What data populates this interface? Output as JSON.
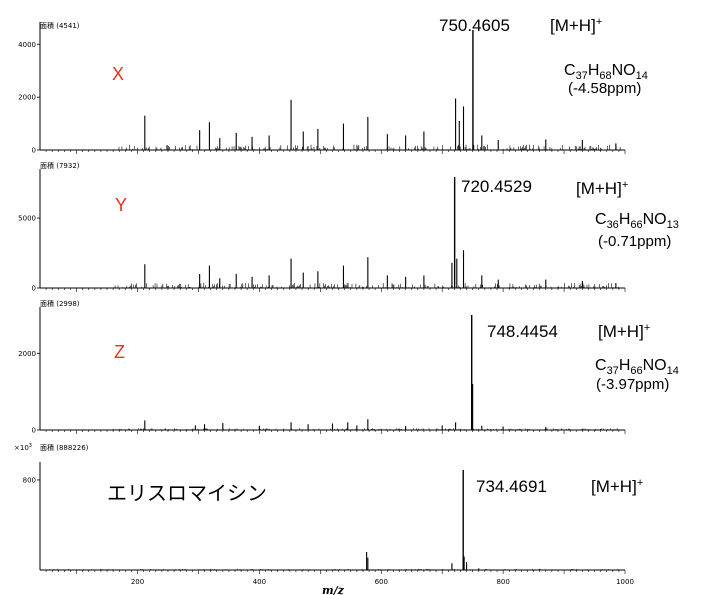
{
  "chart_data": [
    {
      "type": "bar",
      "header": "面積 (4541)",
      "label": "X",
      "label_color": "#e8321e",
      "peak_label": "750.4605",
      "ion": "[M+H]",
      "ion_sup": "+",
      "formula_parts": [
        "C",
        "37",
        "H",
        "68",
        "NO",
        "14"
      ],
      "ppm": "(-4.58ppm)",
      "yticks": [
        "4000",
        "2000",
        "0"
      ],
      "ylim": [
        0,
        4541
      ],
      "main_peak": {
        "x": 750.46,
        "y": 4541
      },
      "peaks": [
        {
          "x": 212,
          "y": 1300
        },
        {
          "x": 302,
          "y": 750
        },
        {
          "x": 318,
          "y": 1050
        },
        {
          "x": 335,
          "y": 450
        },
        {
          "x": 362,
          "y": 650
        },
        {
          "x": 388,
          "y": 500
        },
        {
          "x": 416,
          "y": 550
        },
        {
          "x": 452,
          "y": 1900
        },
        {
          "x": 472,
          "y": 700
        },
        {
          "x": 496,
          "y": 800
        },
        {
          "x": 538,
          "y": 1000
        },
        {
          "x": 578,
          "y": 1250
        },
        {
          "x": 610,
          "y": 600
        },
        {
          "x": 640,
          "y": 550
        },
        {
          "x": 670,
          "y": 700
        },
        {
          "x": 722,
          "y": 1950
        },
        {
          "x": 728,
          "y": 1100
        },
        {
          "x": 735,
          "y": 1650
        },
        {
          "x": 765,
          "y": 550
        },
        {
          "x": 792,
          "y": 380
        },
        {
          "x": 870,
          "y": 400
        },
        {
          "x": 930,
          "y": 380
        },
        {
          "x": 985,
          "y": 250
        }
      ]
    },
    {
      "type": "bar",
      "header": "面積 (7932)",
      "label": "Y",
      "label_color": "#e8321e",
      "peak_label": "720.4529",
      "ion": "[M+H]",
      "ion_sup": "+",
      "formula_parts": [
        "C",
        "36",
        "H",
        "66",
        "NO",
        "13"
      ],
      "ppm": "(-0.71ppm)",
      "yticks": [
        "5000",
        "0"
      ],
      "ylim": [
        0,
        7932
      ],
      "main_peak": {
        "x": 720.45,
        "y": 7932
      },
      "peaks": [
        {
          "x": 212,
          "y": 1700
        },
        {
          "x": 302,
          "y": 1000
        },
        {
          "x": 318,
          "y": 1600
        },
        {
          "x": 335,
          "y": 700
        },
        {
          "x": 362,
          "y": 1000
        },
        {
          "x": 388,
          "y": 800
        },
        {
          "x": 416,
          "y": 900
        },
        {
          "x": 452,
          "y": 2100
        },
        {
          "x": 472,
          "y": 1100
        },
        {
          "x": 496,
          "y": 1200
        },
        {
          "x": 538,
          "y": 1600
        },
        {
          "x": 578,
          "y": 2200
        },
        {
          "x": 610,
          "y": 900
        },
        {
          "x": 640,
          "y": 800
        },
        {
          "x": 670,
          "y": 900
        },
        {
          "x": 716,
          "y": 1800
        },
        {
          "x": 724,
          "y": 2100
        },
        {
          "x": 735,
          "y": 2700
        },
        {
          "x": 765,
          "y": 900
        },
        {
          "x": 792,
          "y": 600
        },
        {
          "x": 870,
          "y": 600
        },
        {
          "x": 930,
          "y": 500
        },
        {
          "x": 985,
          "y": 350
        }
      ]
    },
    {
      "type": "bar",
      "header": "面積 (2998)",
      "label": "Z",
      "label_color": "#e8321e",
      "peak_label": "748.4454",
      "ion": "[M+H]",
      "ion_sup": "+",
      "formula_parts": [
        "C",
        "37",
        "H",
        "66",
        "NO",
        "14"
      ],
      "ppm": "(-3.97ppm)",
      "yticks": [
        "2000",
        "0"
      ],
      "ylim": [
        0,
        2998
      ],
      "main_peak": {
        "x": 748.45,
        "y": 2998
      },
      "peaks": [
        {
          "x": 212,
          "y": 250
        },
        {
          "x": 295,
          "y": 120
        },
        {
          "x": 310,
          "y": 150
        },
        {
          "x": 340,
          "y": 180
        },
        {
          "x": 400,
          "y": 110
        },
        {
          "x": 452,
          "y": 200
        },
        {
          "x": 480,
          "y": 150
        },
        {
          "x": 520,
          "y": 170
        },
        {
          "x": 545,
          "y": 200
        },
        {
          "x": 560,
          "y": 120
        },
        {
          "x": 578,
          "y": 280
        },
        {
          "x": 640,
          "y": 100
        },
        {
          "x": 700,
          "y": 120
        },
        {
          "x": 722,
          "y": 200
        },
        {
          "x": 750,
          "y": 1200
        },
        {
          "x": 765,
          "y": 110
        },
        {
          "x": 800,
          "y": 90
        },
        {
          "x": 870,
          "y": 80
        }
      ]
    },
    {
      "type": "bar",
      "scale_prefix": "×10",
      "scale_exp": "3",
      "header": "面積 (888226)",
      "label": "エリスロマイシン",
      "label_color": "#000000",
      "peak_label": "734.4691",
      "ion": "[M+H]",
      "ion_sup": "+",
      "formula_parts": [],
      "ppm": "",
      "yticks": [
        "800"
      ],
      "ylim": [
        0,
        888226
      ],
      "main_peak": {
        "x": 734.47,
        "y": 888226
      },
      "peaks": [
        {
          "x": 576,
          "y": 160000
        },
        {
          "x": 578,
          "y": 110000
        },
        {
          "x": 716,
          "y": 60000
        },
        {
          "x": 736,
          "y": 120000
        },
        {
          "x": 740,
          "y": 70000
        },
        {
          "x": 760,
          "y": 15000
        },
        {
          "x": 860,
          "y": 10000
        }
      ],
      "xticks": [
        "200",
        "400",
        "600",
        "800",
        "1000"
      ],
      "xlabel": "m/z"
    }
  ],
  "xlim": [
    40,
    1000
  ]
}
